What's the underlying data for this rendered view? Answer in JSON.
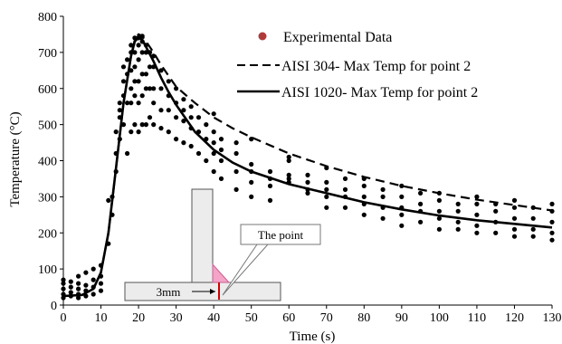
{
  "chart_data": {
    "type": "scatter",
    "title": "",
    "xlabel": "Time (s)",
    "ylabel": "Temperature  (°C)",
    "xlim": [
      0,
      130
    ],
    "ylim": [
      0,
      800
    ],
    "x_ticks": [
      0,
      10,
      20,
      30,
      40,
      50,
      60,
      70,
      80,
      90,
      100,
      110,
      120,
      130
    ],
    "y_ticks": [
      0,
      100,
      200,
      300,
      400,
      500,
      600,
      700,
      800
    ],
    "grid": false,
    "legend_position": "top-right",
    "series": [
      {
        "name": "Experimental Data",
        "kind": "markers",
        "color": "#b03a3a",
        "x": [
          0,
          0,
          0,
          0,
          0,
          2,
          2,
          2,
          2,
          4,
          4,
          4,
          4,
          4,
          6,
          6,
          6,
          6,
          8,
          8,
          8,
          8,
          10,
          10,
          10,
          10,
          12,
          12,
          13,
          13,
          14,
          14,
          14,
          15,
          15,
          15,
          15,
          16,
          16,
          16,
          16,
          17,
          17,
          17,
          17,
          18,
          18,
          18,
          18,
          18,
          18,
          19,
          19,
          19,
          19,
          19,
          19,
          20,
          20,
          20,
          20,
          20,
          20,
          21,
          21,
          21,
          21,
          21,
          21,
          22,
          22,
          22,
          22,
          22,
          23,
          23,
          23,
          23,
          24,
          24,
          24,
          24,
          24,
          26,
          26,
          26,
          26,
          28,
          28,
          28,
          28,
          30,
          30,
          30,
          30,
          32,
          32,
          32,
          32,
          34,
          34,
          34,
          34,
          36,
          36,
          36,
          38,
          38,
          38,
          40,
          40,
          40,
          40,
          40,
          42,
          42,
          42,
          42,
          46,
          46,
          46,
          46,
          50,
          50,
          50,
          50,
          50,
          55,
          55,
          55,
          55,
          60,
          60,
          60,
          60,
          60,
          65,
          65,
          65,
          65,
          70,
          70,
          70,
          70,
          70,
          75,
          75,
          75,
          75,
          80,
          80,
          80,
          80,
          80,
          85,
          85,
          85,
          85,
          90,
          90,
          90,
          90,
          90,
          95,
          95,
          95,
          95,
          100,
          100,
          100,
          100,
          100,
          105,
          105,
          105,
          105,
          110,
          110,
          110,
          110,
          110,
          115,
          115,
          115,
          115,
          120,
          120,
          120,
          120,
          120,
          125,
          125,
          125,
          125,
          130,
          130,
          130,
          130,
          130
        ],
        "y": [
          20,
          30,
          45,
          60,
          70,
          25,
          35,
          50,
          65,
          20,
          30,
          45,
          60,
          80,
          25,
          40,
          55,
          90,
          30,
          50,
          70,
          100,
          40,
          60,
          80,
          110,
          170,
          290,
          250,
          300,
          370,
          420,
          480,
          460,
          520,
          540,
          560,
          500,
          580,
          620,
          660,
          420,
          560,
          640,
          680,
          480,
          560,
          600,
          650,
          700,
          720,
          500,
          580,
          620,
          660,
          700,
          740,
          480,
          560,
          620,
          680,
          720,
          740,
          500,
          580,
          640,
          700,
          730,
          745,
          500,
          600,
          640,
          700,
          720,
          520,
          600,
          660,
          700,
          500,
          560,
          600,
          660,
          690,
          490,
          540,
          600,
          650,
          480,
          540,
          580,
          620,
          460,
          520,
          560,
          600,
          450,
          510,
          540,
          570,
          440,
          490,
          520,
          550,
          420,
          480,
          520,
          400,
          460,
          500,
          370,
          420,
          450,
          480,
          530,
          350,
          400,
          430,
          460,
          320,
          370,
          420,
          450,
          300,
          340,
          370,
          390,
          460,
          290,
          330,
          350,
          370,
          340,
          350,
          360,
          400,
          410,
          310,
          320,
          340,
          360,
          270,
          300,
          320,
          340,
          380,
          270,
          300,
          320,
          350,
          250,
          280,
          300,
          330,
          350,
          240,
          270,
          300,
          320,
          220,
          250,
          270,
          300,
          330,
          230,
          260,
          280,
          310,
          210,
          240,
          260,
          290,
          310,
          210,
          230,
          260,
          280,
          200,
          220,
          250,
          280,
          300,
          200,
          230,
          260,
          280,
          190,
          210,
          240,
          270,
          290,
          190,
          210,
          240,
          270,
          180,
          200,
          230,
          260,
          280
        ]
      },
      {
        "name": "AISI 304- Max Temp for point 2",
        "kind": "dashed-line",
        "color": "#000000",
        "x": [
          0,
          5,
          8,
          10,
          12,
          14,
          16,
          18,
          19,
          20,
          21,
          22,
          24,
          26,
          28,
          30,
          35,
          40,
          45,
          50,
          60,
          70,
          80,
          90,
          100,
          110,
          120,
          130
        ],
        "y": [
          25,
          28,
          45,
          90,
          200,
          380,
          560,
          690,
          735,
          750,
          745,
          730,
          700,
          665,
          635,
          605,
          560,
          520,
          490,
          465,
          420,
          385,
          355,
          330,
          310,
          292,
          277,
          262
        ]
      },
      {
        "name": "AISI 1020-  Max Temp for point 2",
        "kind": "solid-line",
        "color": "#000000",
        "x": [
          0,
          5,
          8,
          10,
          12,
          14,
          16,
          18,
          19,
          20,
          21,
          22,
          24,
          26,
          28,
          30,
          35,
          40,
          45,
          50,
          60,
          70,
          80,
          90,
          100,
          110,
          120,
          130
        ],
        "y": [
          25,
          28,
          45,
          90,
          200,
          380,
          560,
          690,
          730,
          742,
          735,
          715,
          675,
          630,
          590,
          555,
          480,
          430,
          395,
          370,
          335,
          310,
          285,
          265,
          248,
          235,
          225,
          215
        ]
      }
    ],
    "annotations": {
      "callout_label": "The point",
      "dimension_label": "3mm"
    }
  }
}
